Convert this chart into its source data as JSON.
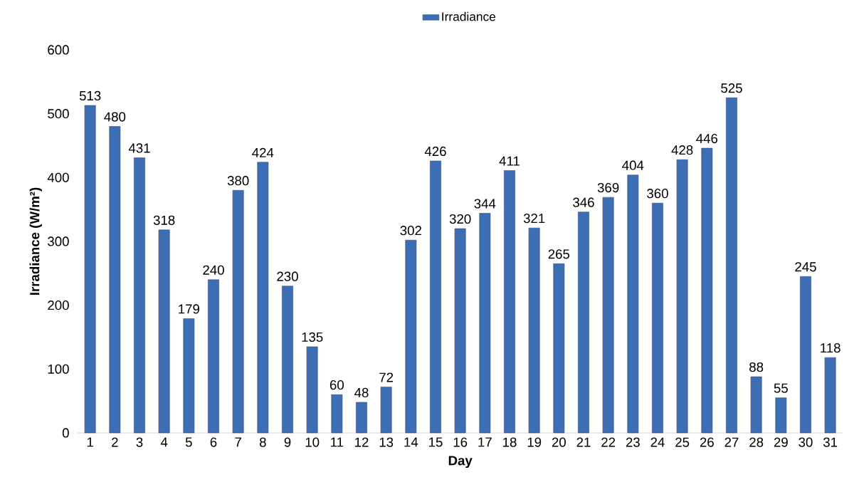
{
  "chart_data": {
    "type": "bar",
    "xlabel": "Day",
    "ylabel": "Irradiance (W/m²)",
    "categories": [
      "1",
      "2",
      "3",
      "4",
      "5",
      "6",
      "7",
      "8",
      "9",
      "10",
      "11",
      "12",
      "13",
      "14",
      "15",
      "16",
      "17",
      "18",
      "19",
      "20",
      "21",
      "22",
      "23",
      "24",
      "25",
      "26",
      "27",
      "28",
      "29",
      "30",
      "31"
    ],
    "series": [
      {
        "name": "Irradiance",
        "color": "#3d6db3",
        "values": [
          513,
          480,
          431,
          318,
          179,
          240,
          380,
          424,
          230,
          135,
          60,
          48,
          72,
          302,
          426,
          320,
          344,
          411,
          321,
          265,
          346,
          369,
          404,
          360,
          428,
          446,
          525,
          88,
          55,
          245,
          118
        ]
      }
    ],
    "ylim": [
      0,
      600
    ],
    "yticks": [
      0,
      100,
      200,
      300,
      400,
      500,
      600
    ],
    "data_labels": true,
    "legend": "top"
  }
}
